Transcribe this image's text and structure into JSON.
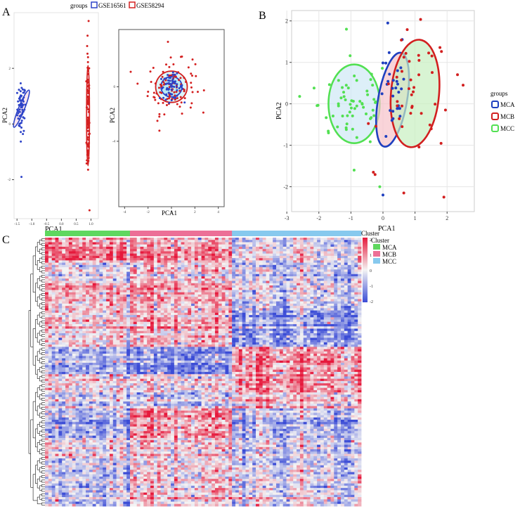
{
  "panel_labels": {
    "a": "A",
    "b": "B",
    "c": "C"
  },
  "colors": {
    "gse16561": "#2e44c8",
    "gse58294": "#d42020",
    "mca": "#1f3fbf",
    "mcb": "#d21f1f",
    "mcc": "#52e052",
    "cluster_mca": "#5fd75f",
    "cluster_mcb": "#ec6f97",
    "cluster_mcc": "#87c9ee",
    "heat_low": "#3b4cd6",
    "heat_mid": "#f4f4f4",
    "heat_high": "#e6193c"
  },
  "chart_data": [
    {
      "id": "A-left",
      "type": "scatter",
      "xlabel": "PCA1",
      "ylabel": "PCA2",
      "legend": {
        "title": "groups",
        "entries": [
          "GSE16561",
          "GSE58294"
        ],
        "position": "top"
      },
      "xticks": [
        -1.5,
        -1.0,
        -0.5,
        0.0,
        0.5,
        1.0
      ],
      "xtick_labels": [
        "-1.5",
        "-1.0",
        "-0.5",
        "0.0",
        "0.5",
        "1.0"
      ],
      "yticks": [
        -2,
        0,
        2
      ],
      "ytick_labels": [
        "-2",
        "0",
        "2"
      ],
      "xlim": [
        -1.6,
        1.25
      ],
      "ylim": [
        -3.4,
        4.0
      ],
      "ellipses": [
        {
          "group": "GSE16561",
          "cx": -1.35,
          "cy": 0.55,
          "rx": 0.1,
          "ry": 0.72,
          "tilt_deg": 22
        },
        {
          "group": "GSE58294",
          "cx": 0.9,
          "cy": 0.3,
          "rx": 0.05,
          "ry": 1.8,
          "tilt_deg": 0
        }
      ],
      "series": [
        {
          "name": "GSE16561",
          "cx": -1.35,
          "cy": 0.55,
          "sx": 0.07,
          "sy": 0.45,
          "n": 70,
          "extra": [
            [
              -1.35,
              -1.9
            ]
          ]
        },
        {
          "name": "GSE58294",
          "cx": 0.9,
          "cy": 0.3,
          "sx": 0.025,
          "sy": 1.15,
          "n": 90,
          "extra": [
            [
              0.92,
              3.7
            ],
            [
              0.95,
              -3.1
            ],
            [
              0.9,
              2.4
            ]
          ]
        }
      ]
    },
    {
      "id": "A-right",
      "type": "scatter",
      "xlabel": "PCA1",
      "ylabel": "PCA2",
      "xticks": [
        -4,
        -2,
        0,
        2,
        4
      ],
      "xtick_labels": [
        "-4",
        "-2",
        "0",
        "2",
        "4"
      ],
      "yticks": [
        0,
        -4
      ],
      "ytick_labels": [
        "0",
        "-4"
      ],
      "xlim": [
        -4.5,
        4.5
      ],
      "ylim": [
        -8.8,
        4.2
      ],
      "ellipses": [
        {
          "group": "GSE58294",
          "cx": 0,
          "cy": 0,
          "rx": 1.35,
          "ry": 1.15,
          "tilt_deg": 0
        },
        {
          "group": "GSE16561",
          "cx": 0,
          "cy": 0,
          "rx": 0.9,
          "ry": 0.75,
          "tilt_deg": 0
        }
      ],
      "series": [
        {
          "name": "GSE58294",
          "cx": 0,
          "cy": 0,
          "sx": 1.0,
          "sy": 0.95,
          "n": 110,
          "extra": [
            [
              -0.3,
              3.3
            ],
            [
              1.8,
              2.0
            ],
            [
              -1.2,
              -2.5
            ]
          ]
        },
        {
          "name": "GSE16561",
          "cx": 0,
          "cy": 0,
          "sx": 0.5,
          "sy": 0.45,
          "n": 60,
          "extra": []
        }
      ]
    },
    {
      "id": "B",
      "type": "scatter",
      "xlabel": "PCA1",
      "ylabel": "PCA2",
      "legend": {
        "title": "groups",
        "entries": [
          "MCA",
          "MCB",
          "MCC"
        ],
        "position": "right"
      },
      "xticks": [
        -3,
        -2,
        -1,
        0,
        1,
        2
      ],
      "xtick_labels": [
        "-3",
        "-2",
        "-1",
        "0",
        "1",
        "2"
      ],
      "yticks": [
        -2,
        -1,
        0,
        1,
        2
      ],
      "ytick_labels": [
        "-2",
        "-1",
        "0",
        "1",
        "2"
      ],
      "xlim": [
        -2.85,
        2.85
      ],
      "ylim": [
        -2.6,
        2.25
      ],
      "grid": true,
      "ellipses": [
        {
          "group": "MCC",
          "cx": -0.9,
          "cy": 0.0,
          "rx": 0.8,
          "ry": 0.95,
          "tilt_deg": 0,
          "fill": "#cfe8f5"
        },
        {
          "group": "MCA",
          "cx": 0.3,
          "cy": 0.1,
          "rx": 0.45,
          "ry": 1.15,
          "tilt_deg": 10,
          "fill": "#f6c2c9"
        },
        {
          "group": "MCB",
          "cx": 1.0,
          "cy": 0.25,
          "rx": 0.75,
          "ry": 1.3,
          "tilt_deg": 5,
          "fill": "#c7efc0"
        }
      ],
      "series": [
        {
          "name": "MCC",
          "cx": -0.9,
          "cy": 0.0,
          "sx": 0.55,
          "sy": 0.55,
          "n": 55,
          "extra": [
            [
              -2.15,
              0.38
            ],
            [
              -2.6,
              0.18
            ],
            [
              -0.1,
              -2.0
            ],
            [
              -0.9,
              -1.6
            ],
            [
              -1.7,
              -0.7
            ]
          ]
        },
        {
          "name": "MCA",
          "cx": 0.3,
          "cy": 0.1,
          "sx": 0.22,
          "sy": 0.6,
          "n": 28,
          "extra": [
            [
              0.0,
              -2.2
            ],
            [
              0.15,
              1.95
            ],
            [
              0.6,
              1.55
            ]
          ]
        },
        {
          "name": "MCB",
          "cx": 1.0,
          "cy": 0.2,
          "sx": 0.55,
          "sy": 0.75,
          "n": 40,
          "extra": [
            [
              2.5,
              0.45
            ],
            [
              1.9,
              -2.25
            ],
            [
              0.65,
              -2.15
            ],
            [
              1.95,
              -0.15
            ],
            [
              -0.3,
              -1.65
            ]
          ]
        }
      ]
    },
    {
      "id": "C",
      "type": "heatmap",
      "title": "Cluster",
      "clusters": [
        {
          "name": "MCA",
          "cols": 25
        },
        {
          "name": "MCB",
          "cols": 30
        },
        {
          "name": "MCC",
          "cols": 38
        }
      ],
      "rows": 118,
      "color_scale": {
        "min": -2,
        "max": 2,
        "tick_labels": [
          "2",
          "1",
          "0",
          "-1",
          "-2"
        ]
      },
      "legend": {
        "title": "Cluster",
        "entries": [
          "MCA",
          "MCB",
          "MCC"
        ]
      },
      "blocks": [
        {
          "cluster": "MCA",
          "row_from": 0,
          "row_to": 10,
          "mean": 0.9
        },
        {
          "cluster": "MCA",
          "row_from": 10,
          "row_to": 20,
          "mean": -0.2
        },
        {
          "cluster": "MCA",
          "row_from": 20,
          "row_to": 32,
          "mean": 0.4
        },
        {
          "cluster": "MCA",
          "row_from": 32,
          "row_to": 48,
          "mean": 0.5
        },
        {
          "cluster": "MCA",
          "row_from": 48,
          "row_to": 60,
          "mean": -0.6
        },
        {
          "cluster": "MCA",
          "row_from": 60,
          "row_to": 75,
          "mean": -0.1
        },
        {
          "cluster": "MCA",
          "row_from": 75,
          "row_to": 88,
          "mean": -0.7
        },
        {
          "cluster": "MCA",
          "row_from": 88,
          "row_to": 100,
          "mean": 0.1
        },
        {
          "cluster": "MCA",
          "row_from": 100,
          "row_to": 118,
          "mean": -0.4
        },
        {
          "cluster": "MCB",
          "row_from": 0,
          "row_to": 10,
          "mean": 0.6
        },
        {
          "cluster": "MCB",
          "row_from": 10,
          "row_to": 20,
          "mean": 0.2
        },
        {
          "cluster": "MCB",
          "row_from": 20,
          "row_to": 32,
          "mean": 0.5
        },
        {
          "cluster": "MCB",
          "row_from": 32,
          "row_to": 48,
          "mean": 0.7
        },
        {
          "cluster": "MCB",
          "row_from": 48,
          "row_to": 60,
          "mean": -1.1
        },
        {
          "cluster": "MCB",
          "row_from": 60,
          "row_to": 75,
          "mean": -0.3
        },
        {
          "cluster": "MCB",
          "row_from": 75,
          "row_to": 88,
          "mean": 0.9
        },
        {
          "cluster": "MCB",
          "row_from": 88,
          "row_to": 100,
          "mean": 0.4
        },
        {
          "cluster": "MCB",
          "row_from": 100,
          "row_to": 118,
          "mean": 0.3
        },
        {
          "cluster": "MCC",
          "row_from": 0,
          "row_to": 10,
          "mean": -0.3
        },
        {
          "cluster": "MCC",
          "row_from": 10,
          "row_to": 20,
          "mean": -0.5
        },
        {
          "cluster": "MCC",
          "row_from": 20,
          "row_to": 32,
          "mean": -0.4
        },
        {
          "cluster": "MCC",
          "row_from": 32,
          "row_to": 48,
          "mean": -0.8
        },
        {
          "cluster": "MCC",
          "row_from": 48,
          "row_to": 60,
          "mean": 1.0
        },
        {
          "cluster": "MCC",
          "row_from": 60,
          "row_to": 75,
          "mean": 0.6
        },
        {
          "cluster": "MCC",
          "row_from": 75,
          "row_to": 88,
          "mean": -0.6
        },
        {
          "cluster": "MCC",
          "row_from": 88,
          "row_to": 100,
          "mean": -0.2
        },
        {
          "cluster": "MCC",
          "row_from": 100,
          "row_to": 118,
          "mean": -0.1
        }
      ]
    }
  ]
}
